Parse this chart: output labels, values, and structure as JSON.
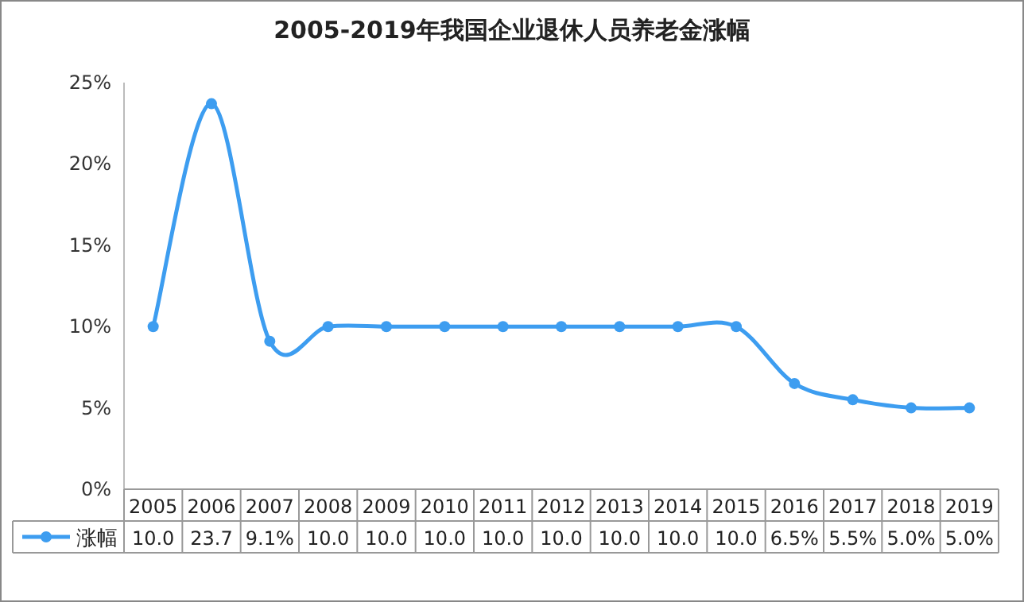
{
  "chart_data": {
    "type": "line",
    "title": "2005-2019年我国企业退休人员养老金涨幅",
    "categories": [
      "2005",
      "2006",
      "2007",
      "2008",
      "2009",
      "2010",
      "2011",
      "2012",
      "2013",
      "2014",
      "2015",
      "2016",
      "2017",
      "2018",
      "2019"
    ],
    "series": [
      {
        "name": "涨幅",
        "color": "#3d9df0",
        "values": [
          10,
          23.7,
          9.1,
          10,
          10,
          10,
          10,
          10,
          10,
          10,
          10,
          6.5,
          5.5,
          5,
          5
        ],
        "value_labels": [
          "10.0",
          "23.7",
          "9.1%",
          "10.0",
          "10.0",
          "10.0",
          "10.0",
          "10.0",
          "10.0",
          "10.0",
          "10.0",
          "6.5%",
          "5.5%",
          "5.0%",
          "5.0%"
        ]
      }
    ],
    "ylim": [
      0,
      25
    ],
    "yticks": [
      {
        "value": 0,
        "label": "0%"
      },
      {
        "value": 5,
        "label": "5%"
      },
      {
        "value": 10,
        "label": "10%"
      },
      {
        "value": 15,
        "label": "15%"
      },
      {
        "value": 20,
        "label": "20%"
      },
      {
        "value": 25,
        "label": "25%"
      }
    ],
    "marker": "circle",
    "legend": "bottom",
    "line_style": "solid"
  }
}
